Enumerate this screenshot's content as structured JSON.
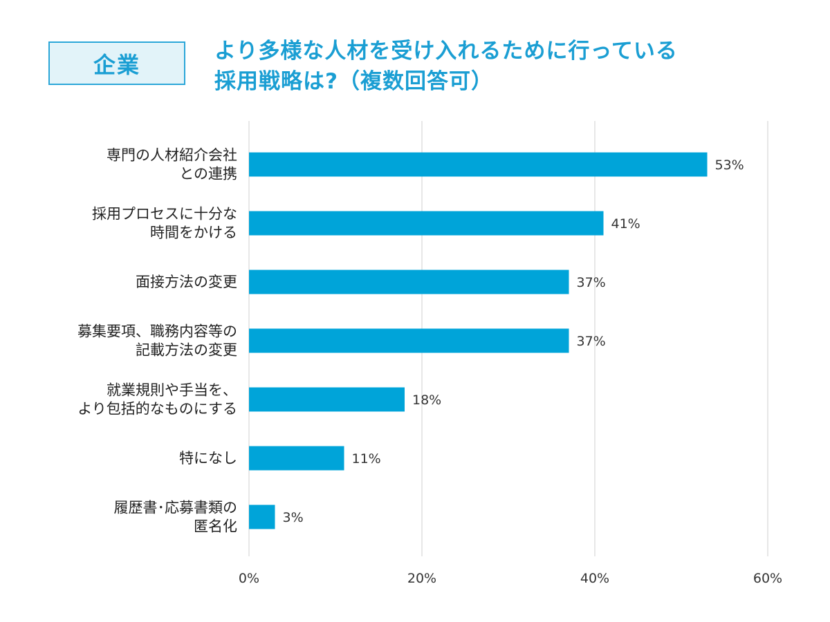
{
  "badge": "企業",
  "title": {
    "line1": "より多様な人材を受け入れるために行っている",
    "line2": "採用戦略は?（複数回答可）"
  },
  "colors": {
    "accent": "#1a9ed3",
    "bar": "#00a4d9",
    "badge_bg": "#e2f3f9",
    "grid": "#cfcfcf"
  },
  "chart_data": {
    "type": "bar",
    "orientation": "horizontal",
    "categories": [
      [
        "専門の人材紹介会社",
        "との連携"
      ],
      [
        "採用プロセスに十分な",
        "時間をかける"
      ],
      [
        "面接方法の変更"
      ],
      [
        "募集要項、職務内容等の",
        "記載方法の変更"
      ],
      [
        "就業規則や手当を、",
        "より包括的なものにする"
      ],
      [
        "特になし"
      ],
      [
        "履歴書･応募書類の",
        "匿名化"
      ]
    ],
    "values": [
      53,
      41,
      37,
      37,
      18,
      11,
      3
    ],
    "value_labels": [
      "53%",
      "41%",
      "37%",
      "37%",
      "18%",
      "11%",
      "3%"
    ],
    "xlim": [
      0,
      60
    ],
    "ticks": [
      0,
      20,
      40,
      60
    ],
    "tick_labels": [
      "0%",
      "20%",
      "40%",
      "60%"
    ],
    "grid": true
  }
}
